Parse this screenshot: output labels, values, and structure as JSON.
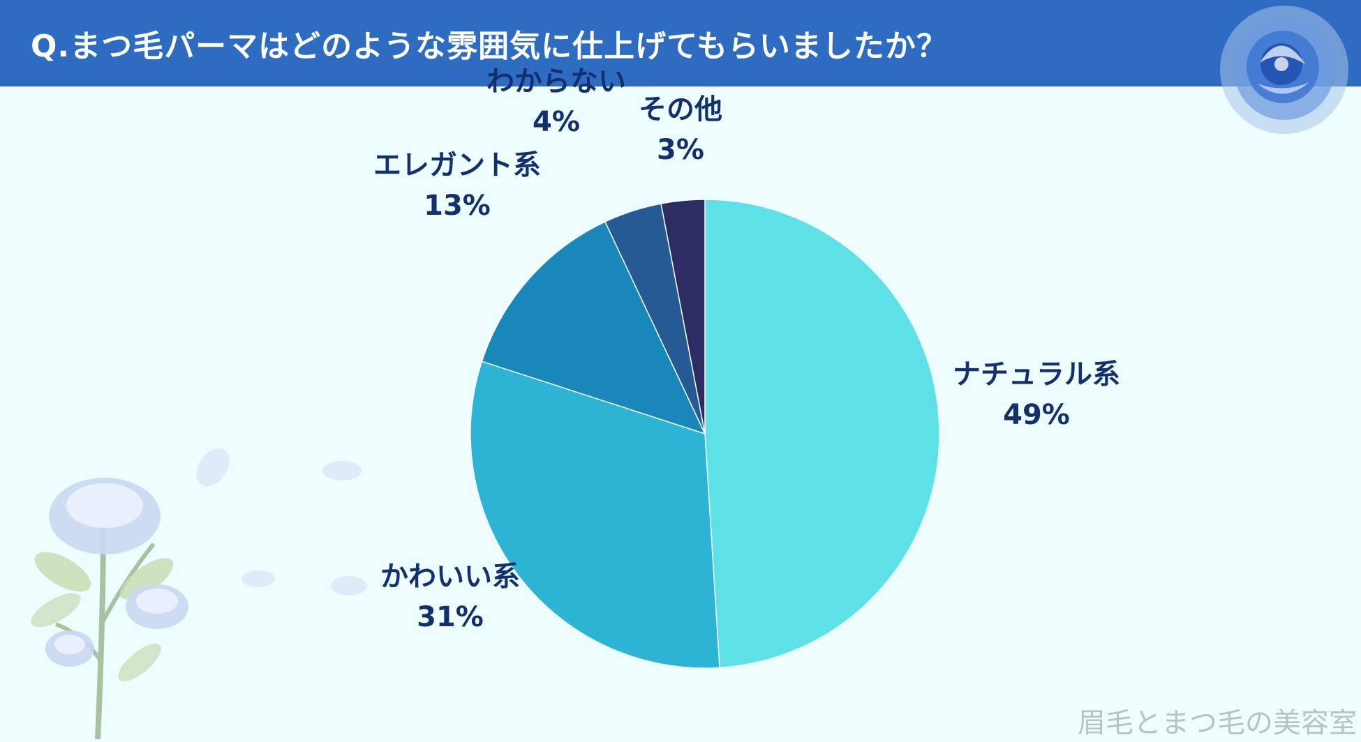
{
  "header": {
    "title": "Q.まつ毛パーマはどのような雰囲気に仕上げてもらいましたか？"
  },
  "chart_data": {
    "type": "pie",
    "title": "Q.まつ毛パーマはどのような雰囲気に仕上げてもらいましたか？",
    "slices": [
      {
        "label": "ナチュラル系",
        "value": 49,
        "display": "49%",
        "color": "#5ee1e6"
      },
      {
        "label": "かわいい系",
        "value": 31,
        "display": "31%",
        "color": "#2db4d5"
      },
      {
        "label": "エレガント系",
        "value": 13,
        "display": "13%",
        "color": "#1a87bb"
      },
      {
        "label": "わからない",
        "value": 4,
        "display": "4%",
        "color": "#255a94"
      },
      {
        "label": "その他",
        "value": 3,
        "display": "3%",
        "color": "#2c2c63"
      }
    ],
    "start": "12 o'clock",
    "direction": "clockwise",
    "legend": "none"
  },
  "watermark": "眉毛とまつ毛の美容室",
  "colors": {
    "header": "#2d6cc0",
    "background": "#eefdfd",
    "label_text": "#13306e"
  },
  "decorations": {
    "top_right": "blue-rose-icon",
    "bottom_left": "blue-rose-branch-icon"
  }
}
